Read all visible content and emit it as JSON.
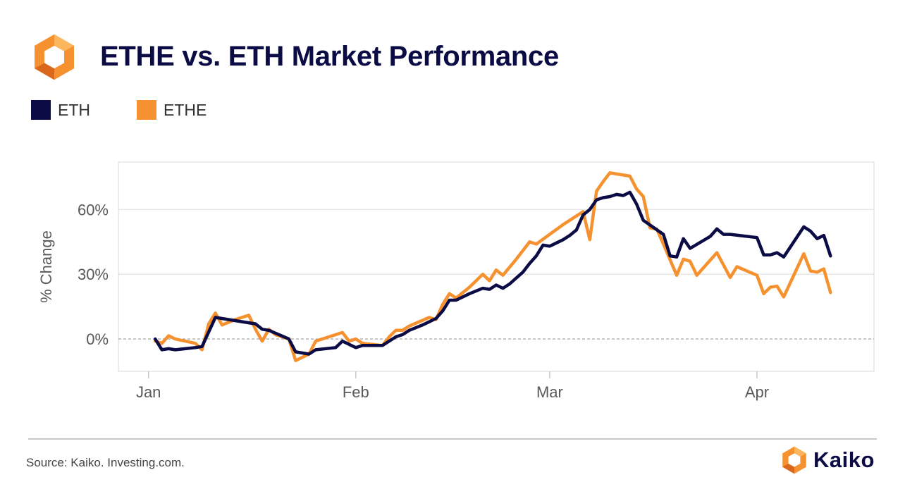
{
  "header": {
    "title": "ETHE vs. ETH Market Performance"
  },
  "colors": {
    "eth": "#0b0b45",
    "ethe": "#f5922f",
    "grid": "#e6e6e6",
    "zero_line": "#9a9a9a",
    "axis_text": "#595959"
  },
  "icons": {
    "logo": "kaiko-hexagon-logo-icon"
  },
  "chart_data": {
    "type": "line",
    "title": "ETHE vs. ETH Market Performance",
    "ylabel": "% Change",
    "xlabel": "",
    "x_ticks": [
      {
        "label": "Jan",
        "day": 0
      },
      {
        "label": "Feb",
        "day": 31
      },
      {
        "label": "Mar",
        "day": 60
      },
      {
        "label": "Apr",
        "day": 91
      }
    ],
    "y_ticks": [
      {
        "label": "60%",
        "value": 60
      },
      {
        "label": "30%",
        "value": 30
      },
      {
        "label": "0%",
        "value": 0
      }
    ],
    "xlim": [
      -4.5,
      108.5
    ],
    "ylim": [
      -15,
      82
    ],
    "legend": "top-left",
    "grid": true,
    "series": [
      {
        "name": "ETH",
        "color": "#0b0b45",
        "points": [
          [
            1,
            0
          ],
          [
            2,
            -5
          ],
          [
            3,
            -4.5
          ],
          [
            4,
            -5
          ],
          [
            7,
            -4
          ],
          [
            8,
            -3.5
          ],
          [
            10,
            10
          ],
          [
            14,
            8
          ],
          [
            16,
            7
          ],
          [
            17,
            4.5
          ],
          [
            18,
            4
          ],
          [
            21,
            0
          ],
          [
            22,
            -6
          ],
          [
            24,
            -7
          ],
          [
            25,
            -5
          ],
          [
            28,
            -4
          ],
          [
            29,
            -1
          ],
          [
            31,
            -4
          ],
          [
            32,
            -3
          ],
          [
            35,
            -3
          ],
          [
            36,
            -1
          ],
          [
            37,
            1
          ],
          [
            38,
            2
          ],
          [
            39,
            4
          ],
          [
            41,
            6.5
          ],
          [
            43,
            9.5
          ],
          [
            44,
            13
          ],
          [
            45,
            18
          ],
          [
            46,
            18
          ],
          [
            48,
            21
          ],
          [
            50,
            23.5
          ],
          [
            51,
            23
          ],
          [
            52,
            25
          ],
          [
            53,
            23.5
          ],
          [
            54,
            25.5
          ],
          [
            56,
            31
          ],
          [
            57,
            35
          ],
          [
            58,
            38.5
          ],
          [
            59,
            43.5
          ],
          [
            60,
            43
          ],
          [
            61,
            44.5
          ],
          [
            62,
            46
          ],
          [
            63,
            48
          ],
          [
            64,
            50.5
          ],
          [
            65,
            57.5
          ],
          [
            66,
            60
          ],
          [
            67,
            64.5
          ],
          [
            68,
            65.5
          ],
          [
            69,
            66
          ],
          [
            70,
            67
          ],
          [
            71,
            66.5
          ],
          [
            72,
            68
          ],
          [
            73,
            62.5
          ],
          [
            74,
            55
          ],
          [
            77,
            48.5
          ],
          [
            78,
            38.5
          ],
          [
            79,
            38
          ],
          [
            80,
            46.5
          ],
          [
            81,
            42
          ],
          [
            84,
            47.5
          ],
          [
            85,
            51
          ],
          [
            86,
            48.5
          ],
          [
            87,
            48.5
          ],
          [
            91,
            47
          ],
          [
            92,
            39
          ],
          [
            93,
            39
          ],
          [
            94,
            40
          ],
          [
            95,
            38
          ],
          [
            98,
            52
          ],
          [
            99,
            50
          ],
          [
            100,
            46.5
          ],
          [
            101,
            48
          ],
          [
            102,
            38.5
          ]
        ]
      },
      {
        "name": "ETHE",
        "color": "#f5922f",
        "points": [
          [
            1,
            -1
          ],
          [
            2,
            -2
          ],
          [
            3,
            1.5
          ],
          [
            4,
            0
          ],
          [
            7,
            -2
          ],
          [
            8,
            -5
          ],
          [
            9,
            7
          ],
          [
            10,
            12
          ],
          [
            11,
            6.5
          ],
          [
            13,
            9
          ],
          [
            15,
            11
          ],
          [
            16,
            4.5
          ],
          [
            17,
            -1
          ],
          [
            18,
            4.5
          ],
          [
            19,
            2
          ],
          [
            21,
            0
          ],
          [
            22,
            -10
          ],
          [
            24,
            -7
          ],
          [
            25,
            -1
          ],
          [
            29,
            3
          ],
          [
            30,
            -1
          ],
          [
            31,
            0
          ],
          [
            32,
            -2
          ],
          [
            35,
            -3
          ],
          [
            36,
            1
          ],
          [
            37,
            4
          ],
          [
            38,
            4
          ],
          [
            39,
            6
          ],
          [
            42,
            10
          ],
          [
            43,
            9
          ],
          [
            44,
            16
          ],
          [
            45,
            21
          ],
          [
            46,
            19
          ],
          [
            48,
            24
          ],
          [
            50,
            30
          ],
          [
            51,
            27
          ],
          [
            52,
            32
          ],
          [
            53,
            29.5
          ],
          [
            55,
            37
          ],
          [
            57,
            45
          ],
          [
            58,
            44
          ],
          [
            60,
            48.5
          ],
          [
            62,
            53
          ],
          [
            64,
            57
          ],
          [
            65,
            59
          ],
          [
            66,
            46
          ],
          [
            67,
            68.5
          ],
          [
            68,
            73
          ],
          [
            69,
            77
          ],
          [
            71,
            76
          ],
          [
            72,
            75.5
          ],
          [
            73,
            69.5
          ],
          [
            74,
            66
          ],
          [
            75,
            51.5
          ],
          [
            76,
            51
          ],
          [
            77,
            44
          ],
          [
            79,
            29.5
          ],
          [
            80,
            37
          ],
          [
            81,
            36
          ],
          [
            82,
            29.5
          ],
          [
            85,
            40
          ],
          [
            87,
            28.5
          ],
          [
            88,
            33.5
          ],
          [
            91,
            29.5
          ],
          [
            92,
            21
          ],
          [
            93,
            24
          ],
          [
            94,
            24.5
          ],
          [
            95,
            19.5
          ],
          [
            98,
            39.5
          ],
          [
            99,
            31.5
          ],
          [
            100,
            31
          ],
          [
            101,
            32.5
          ],
          [
            102,
            21.5
          ]
        ]
      }
    ]
  },
  "footer": {
    "source": "Source: Kaiko. Investing.com.",
    "brand": "Kaiko"
  }
}
